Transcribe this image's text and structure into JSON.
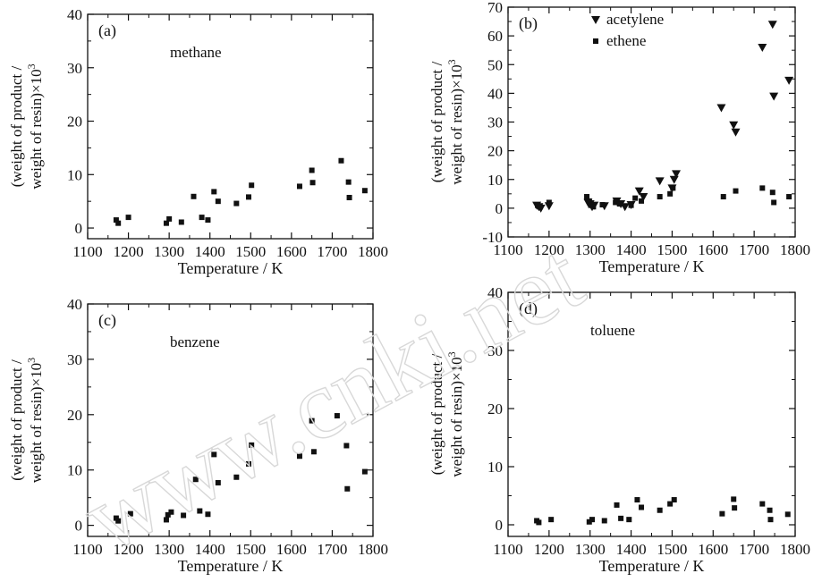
{
  "figure": {
    "watermark": "www.cnki.net"
  },
  "chart_data": [
    {
      "type": "scatter",
      "panel_label": "(a)",
      "series_label": "methane",
      "xlabel": "Temperature / K",
      "ylabel_line1": "(weight of product /",
      "ylabel_line2": "weight of resin)×10",
      "ylabel_sup": "3",
      "xlim": [
        1100,
        1800
      ],
      "ylim": [
        -2,
        40
      ],
      "xticks": [
        1100,
        1200,
        1300,
        1400,
        1500,
        1600,
        1700,
        1800
      ],
      "yticks": [
        0,
        10,
        20,
        30,
        40
      ],
      "series": [
        {
          "marker": "square",
          "x": [
            1170,
            1175,
            1200,
            1293,
            1300,
            1330,
            1360,
            1380,
            1395,
            1410,
            1420,
            1465,
            1495,
            1502,
            1620,
            1650,
            1652,
            1722,
            1740,
            1742,
            1780
          ],
          "y": [
            1.5,
            0.9,
            2.0,
            0.9,
            1.7,
            1.1,
            5.9,
            2.0,
            1.5,
            6.8,
            5.0,
            4.6,
            5.8,
            8.0,
            7.8,
            10.8,
            8.5,
            12.6,
            8.6,
            5.7,
            7.0
          ]
        }
      ]
    },
    {
      "type": "scatter",
      "panel_label": "(b)",
      "xlabel": "Temperature / K",
      "ylabel_line1": "(weight of product /",
      "ylabel_line2": "weight of resin)×10",
      "ylabel_sup": "3",
      "xlim": [
        1100,
        1800
      ],
      "ylim": [
        -10,
        70
      ],
      "xticks": [
        1100,
        1200,
        1300,
        1400,
        1500,
        1600,
        1700,
        1800
      ],
      "yticks": [
        -10,
        0,
        10,
        20,
        30,
        40,
        50,
        60,
        70
      ],
      "legend_position": "top",
      "series": [
        {
          "name": "acetylene",
          "marker": "triangle-down",
          "x": [
            1170,
            1175,
            1180,
            1200,
            1295,
            1300,
            1305,
            1310,
            1335,
            1365,
            1375,
            1385,
            1400,
            1420,
            1430,
            1470,
            1500,
            1505,
            1510,
            1620,
            1650,
            1655,
            1720,
            1745,
            1748,
            1785
          ],
          "y": [
            1.0,
            0.5,
            0.0,
            0.8,
            2.0,
            1.5,
            0.5,
            1.0,
            0.8,
            2.5,
            1.5,
            0.5,
            1.2,
            6.0,
            4.0,
            9.5,
            7.0,
            10.0,
            12.0,
            35.0,
            29.0,
            26.5,
            56.0,
            64.0,
            39.0,
            44.5
          ]
        },
        {
          "name": "ethene",
          "marker": "square",
          "x": [
            1172,
            1178,
            1200,
            1292,
            1298,
            1302,
            1308,
            1330,
            1362,
            1372,
            1400,
            1410,
            1425,
            1470,
            1495,
            1502,
            1625,
            1655,
            1720,
            1745,
            1748,
            1785
          ],
          "y": [
            1.0,
            0.5,
            2.0,
            4.0,
            2.5,
            1.0,
            0.5,
            1.2,
            2.0,
            1.5,
            1.0,
            3.5,
            2.5,
            4.0,
            5.0,
            7.0,
            4.0,
            6.0,
            7.0,
            5.5,
            2.0,
            4.0
          ]
        }
      ]
    },
    {
      "type": "scatter",
      "panel_label": "(c)",
      "series_label": "benzene",
      "xlabel": "Temperature / K",
      "ylabel_line1": "(weight of product /",
      "ylabel_line2": "weight of resin)×10",
      "ylabel_sup": "3",
      "xlim": [
        1100,
        1800
      ],
      "ylim": [
        -2,
        40
      ],
      "xticks": [
        1100,
        1200,
        1300,
        1400,
        1500,
        1600,
        1700,
        1800
      ],
      "yticks": [
        0,
        10,
        20,
        30,
        40
      ],
      "series": [
        {
          "marker": "square",
          "x": [
            1170,
            1175,
            1205,
            1293,
            1297,
            1305,
            1335,
            1365,
            1375,
            1395,
            1410,
            1420,
            1465,
            1495,
            1502,
            1620,
            1650,
            1655,
            1712,
            1735,
            1737,
            1780
          ],
          "y": [
            1.3,
            0.8,
            2.1,
            1.0,
            1.9,
            2.4,
            1.8,
            8.3,
            2.6,
            2.0,
            12.8,
            7.7,
            8.7,
            11.1,
            14.5,
            12.5,
            18.9,
            13.3,
            19.8,
            14.4,
            6.6,
            9.7
          ]
        }
      ]
    },
    {
      "type": "scatter",
      "panel_label": "(d)",
      "series_label": "toluene",
      "xlabel": "Temperature / K",
      "ylabel_line1": "(weight of product /",
      "ylabel_line2": "weight of resin)×10",
      "ylabel_sup": "3",
      "xlim": [
        1100,
        1800
      ],
      "ylim": [
        -2,
        40
      ],
      "xticks": [
        1100,
        1200,
        1300,
        1400,
        1500,
        1600,
        1700,
        1800
      ],
      "yticks": [
        0,
        10,
        20,
        30,
        40
      ],
      "series": [
        {
          "marker": "square",
          "x": [
            1170,
            1175,
            1205,
            1298,
            1305,
            1335,
            1365,
            1375,
            1395,
            1415,
            1425,
            1470,
            1495,
            1505,
            1622,
            1650,
            1652,
            1720,
            1738,
            1740,
            1782
          ],
          "y": [
            0.7,
            0.4,
            0.9,
            0.5,
            0.9,
            0.7,
            3.4,
            1.1,
            0.9,
            4.3,
            3.0,
            2.5,
            3.6,
            4.3,
            1.9,
            4.4,
            2.9,
            3.6,
            2.5,
            0.9,
            1.8
          ]
        }
      ]
    }
  ]
}
